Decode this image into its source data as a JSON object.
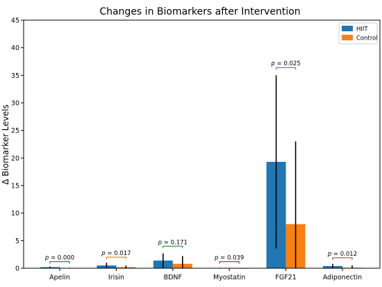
{
  "chart_data": {
    "type": "bar",
    "title": "Changes in Biomarkers after Intervention",
    "xlabel": "",
    "ylabel": "Δ Biomarker Levels",
    "ylim": [
      0,
      45
    ],
    "yticks": [
      0,
      5,
      10,
      15,
      20,
      25,
      30,
      35,
      40,
      45
    ],
    "categories": [
      "Apelin",
      "Irisin",
      "BDNF",
      "Myostatin",
      "FGF21",
      "Adiponectin"
    ],
    "series": [
      {
        "name": "HIIT",
        "color": "#1f77b4",
        "values": [
          0.2,
          0.5,
          1.4,
          0.05,
          19.3,
          0.4
        ],
        "errors": [
          0.1,
          0.5,
          1.3,
          0.05,
          15.7,
          0.4
        ]
      },
      {
        "name": "Control",
        "color": "#ff7f0e",
        "values": [
          0.05,
          0.2,
          0.8,
          0.02,
          8.0,
          0.1
        ],
        "errors": [
          0.05,
          0.3,
          1.4,
          0.05,
          15.0,
          0.4
        ]
      }
    ],
    "annotations": [
      {
        "category": "Apelin",
        "text": "p = 0.000",
        "y": 1.2,
        "color": "#1f77b4"
      },
      {
        "category": "Irisin",
        "text": "p = 0.017",
        "y": 2.0,
        "color": "#ff7f0e"
      },
      {
        "category": "BDNF",
        "text": "p = 0.171",
        "y": 4.0,
        "color": "#2ca02c"
      },
      {
        "category": "Myostatin",
        "text": "p = 0.039",
        "y": 1.2,
        "color": "#d62728"
      },
      {
        "category": "FGF21",
        "text": "p = 0.025",
        "y": 36.4,
        "color": "#9467bd"
      },
      {
        "category": "Adiponectin",
        "text": "p = 0.012",
        "y": 1.9,
        "color": "#8c564b"
      }
    ],
    "legend_position": "top-right",
    "grid": false
  }
}
